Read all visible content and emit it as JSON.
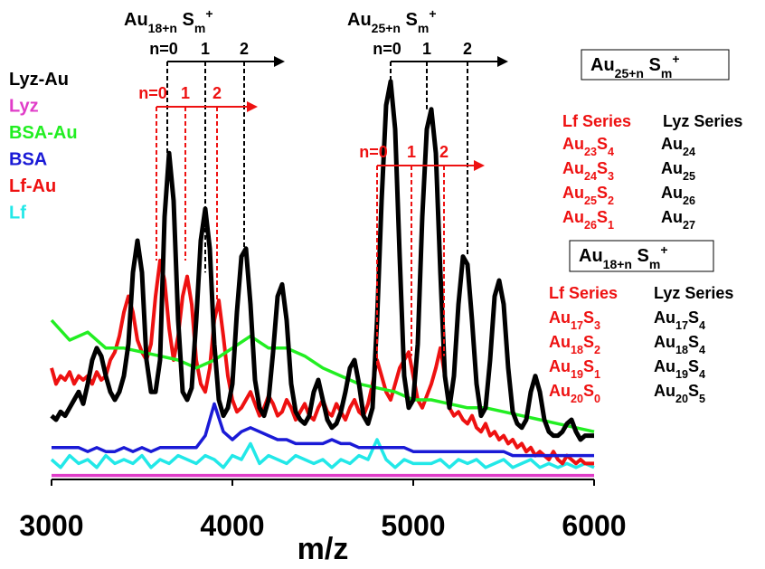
{
  "chart_data": {
    "type": "line",
    "xlabel": "m/z",
    "xlim": [
      3000,
      6000
    ],
    "xticks": [
      3000,
      4000,
      5000,
      6000
    ],
    "ylim": [
      0,
      100
    ],
    "series": [
      {
        "name": "Lyz-Au",
        "color": "#000000",
        "x": [
          3000,
          3025,
          3050,
          3075,
          3100,
          3125,
          3150,
          3175,
          3200,
          3225,
          3250,
          3275,
          3300,
          3325,
          3350,
          3375,
          3400,
          3425,
          3450,
          3475,
          3500,
          3525,
          3550,
          3575,
          3600,
          3625,
          3650,
          3675,
          3700,
          3725,
          3750,
          3775,
          3800,
          3825,
          3850,
          3875,
          3900,
          3925,
          3950,
          3975,
          4000,
          4025,
          4050,
          4075,
          4100,
          4125,
          4150,
          4175,
          4200,
          4225,
          4250,
          4275,
          4300,
          4325,
          4350,
          4375,
          4400,
          4425,
          4450,
          4475,
          4500,
          4525,
          4550,
          4575,
          4600,
          4625,
          4650,
          4675,
          4700,
          4725,
          4750,
          4775,
          4800,
          4825,
          4850,
          4875,
          4900,
          4925,
          4950,
          4975,
          5000,
          5025,
          5050,
          5075,
          5100,
          5125,
          5150,
          5175,
          5200,
          5225,
          5250,
          5275,
          5300,
          5325,
          5350,
          5375,
          5400,
          5425,
          5450,
          5475,
          5500,
          5525,
          5550,
          5575,
          5600,
          5625,
          5650,
          5675,
          5700,
          5725,
          5750,
          5775,
          5800,
          5825,
          5850,
          5875,
          5900,
          5925,
          5950,
          5975,
          6000
        ],
        "values": [
          16,
          15,
          17,
          16,
          18,
          20,
          22,
          19,
          24,
          30,
          33,
          31,
          26,
          22,
          20,
          22,
          26,
          34,
          52,
          60,
          52,
          30,
          22,
          22,
          30,
          66,
          82,
          70,
          40,
          22,
          20,
          23,
          40,
          60,
          68,
          58,
          34,
          20,
          16,
          18,
          24,
          42,
          56,
          58,
          44,
          25,
          18,
          16,
          20,
          32,
          46,
          49,
          40,
          24,
          17,
          15,
          14,
          16,
          22,
          25,
          20,
          15,
          13,
          14,
          17,
          22,
          28,
          30,
          24,
          16,
          14,
          18,
          40,
          70,
          94,
          100,
          88,
          56,
          26,
          18,
          20,
          34,
          66,
          88,
          93,
          82,
          52,
          26,
          18,
          26,
          44,
          56,
          54,
          40,
          24,
          16,
          18,
          30,
          46,
          50,
          44,
          28,
          17,
          14,
          13,
          15,
          22,
          26,
          22,
          15,
          12,
          11,
          11,
          12,
          14,
          15,
          12,
          10,
          11,
          11,
          11
        ]
      },
      {
        "name": "Lyz",
        "color": "#e03cc8",
        "x": [
          3000,
          3500,
          4000,
          4500,
          5000,
          5500,
          6000
        ],
        "values": [
          1,
          1,
          1,
          1,
          1,
          1,
          1
        ]
      },
      {
        "name": "BSA-Au",
        "color": "#22ee22",
        "x": [
          3000,
          3100,
          3200,
          3300,
          3400,
          3500,
          3600,
          3700,
          3800,
          3900,
          4000,
          4100,
          4200,
          4300,
          4400,
          4500,
          4600,
          4700,
          4800,
          4900,
          5000,
          5100,
          5200,
          5300,
          5400,
          5500,
          5600,
          5700,
          5800,
          5900,
          6000
        ],
        "values": [
          40,
          35,
          37,
          33,
          33,
          32,
          31,
          30,
          28,
          30,
          33,
          36,
          33,
          33,
          31,
          28,
          26,
          24,
          23,
          22,
          20,
          20,
          19,
          18,
          18,
          17,
          16,
          15,
          14,
          13,
          12
        ]
      },
      {
        "name": "BSA",
        "color": "#1a1ad6",
        "x": [
          3000,
          3050,
          3100,
          3150,
          3200,
          3250,
          3300,
          3350,
          3400,
          3450,
          3500,
          3550,
          3600,
          3650,
          3700,
          3750,
          3800,
          3850,
          3900,
          3950,
          4000,
          4050,
          4100,
          4150,
          4200,
          4250,
          4300,
          4350,
          4400,
          4450,
          4500,
          4550,
          4600,
          4650,
          4700,
          4750,
          4800,
          4850,
          4900,
          4950,
          5000,
          5050,
          5100,
          5150,
          5200,
          5250,
          5300,
          5350,
          5400,
          5450,
          5500,
          5550,
          5600,
          5650,
          5700,
          5750,
          5800,
          5850,
          5900,
          5950,
          6000
        ],
        "values": [
          8,
          8,
          8,
          8,
          7,
          8,
          7,
          7,
          8,
          7,
          8,
          7,
          8,
          8,
          8,
          8,
          8,
          11,
          19,
          12,
          10,
          12,
          13,
          12,
          11,
          10,
          10,
          9,
          9,
          9,
          9,
          10,
          9,
          9,
          8,
          8,
          8,
          8,
          8,
          8,
          7,
          7,
          7,
          7,
          7,
          7,
          7,
          7,
          7,
          7,
          7,
          6,
          6,
          6,
          6,
          6,
          6,
          6,
          6,
          6,
          6
        ]
      },
      {
        "name": "Lf-Au",
        "color": "#ee1111",
        "x": [
          3000,
          3025,
          3050,
          3075,
          3100,
          3125,
          3150,
          3175,
          3200,
          3225,
          3250,
          3275,
          3300,
          3325,
          3350,
          3375,
          3400,
          3425,
          3450,
          3475,
          3500,
          3525,
          3550,
          3575,
          3600,
          3625,
          3650,
          3675,
          3700,
          3725,
          3750,
          3775,
          3800,
          3825,
          3850,
          3875,
          3900,
          3925,
          3950,
          3975,
          4000,
          4025,
          4050,
          4075,
          4100,
          4125,
          4150,
          4175,
          4200,
          4225,
          4250,
          4275,
          4300,
          4325,
          4350,
          4375,
          4400,
          4425,
          4450,
          4475,
          4500,
          4525,
          4550,
          4575,
          4600,
          4625,
          4650,
          4675,
          4700,
          4725,
          4750,
          4775,
          4800,
          4825,
          4850,
          4875,
          4900,
          4925,
          4950,
          4975,
          5000,
          5025,
          5050,
          5075,
          5100,
          5125,
          5150,
          5175,
          5200,
          5225,
          5250,
          5275,
          5300,
          5325,
          5350,
          5375,
          5400,
          5425,
          5450,
          5475,
          5500,
          5525,
          5550,
          5575,
          5600,
          5625,
          5650,
          5675,
          5700,
          5725,
          5750,
          5775,
          5800,
          5825,
          5850,
          5875,
          5900,
          5925,
          5950,
          5975,
          6000
        ],
        "values": [
          28,
          24,
          26,
          25,
          27,
          24,
          26,
          25,
          26,
          24,
          27,
          25,
          26,
          30,
          32,
          36,
          42,
          46,
          42,
          35,
          32,
          30,
          34,
          46,
          55,
          50,
          38,
          30,
          36,
          46,
          51,
          44,
          30,
          24,
          22,
          28,
          40,
          45,
          36,
          26,
          20,
          17,
          18,
          20,
          22,
          19,
          16,
          18,
          21,
          19,
          16,
          17,
          20,
          18,
          15,
          17,
          19,
          16,
          15,
          18,
          20,
          17,
          16,
          19,
          17,
          15,
          18,
          20,
          17,
          16,
          19,
          24,
          30,
          26,
          22,
          20,
          24,
          28,
          30,
          32,
          26,
          20,
          18,
          21,
          24,
          28,
          33,
          26,
          18,
          16,
          17,
          15,
          14,
          16,
          13,
          12,
          14,
          11,
          12,
          10,
          11,
          9,
          10,
          8,
          9,
          7,
          8,
          6,
          7,
          6,
          5,
          7,
          5,
          4,
          6,
          5,
          4,
          5,
          4,
          4,
          4
        ]
      },
      {
        "name": "Lf",
        "color": "#22e8e8",
        "x": [
          3000,
          3050,
          3100,
          3150,
          3200,
          3250,
          3300,
          3350,
          3400,
          3450,
          3500,
          3550,
          3600,
          3650,
          3700,
          3750,
          3800,
          3850,
          3900,
          3950,
          4000,
          4050,
          4100,
          4150,
          4200,
          4250,
          4300,
          4350,
          4400,
          4450,
          4500,
          4550,
          4600,
          4650,
          4700,
          4750,
          4800,
          4850,
          4900,
          4950,
          5000,
          5050,
          5100,
          5150,
          5200,
          5250,
          5300,
          5350,
          5400,
          5450,
          5500,
          5550,
          5600,
          5650,
          5700,
          5750,
          5800,
          5850,
          5900,
          5950,
          6000
        ],
        "values": [
          5,
          3,
          6,
          4,
          5,
          3,
          6,
          4,
          5,
          4,
          6,
          3,
          5,
          4,
          6,
          5,
          4,
          6,
          5,
          3,
          6,
          5,
          9,
          4,
          6,
          5,
          4,
          6,
          5,
          4,
          5,
          3,
          5,
          4,
          6,
          5,
          10,
          5,
          3,
          5,
          4,
          4,
          4,
          5,
          3,
          5,
          4,
          5,
          3,
          4,
          5,
          3,
          4,
          5,
          3,
          4,
          3,
          4,
          3,
          4,
          3
        ]
      }
    ],
    "markers": [
      {
        "color": "#000000",
        "title": [
          {
            "text": "Au"
          },
          {
            "sub": "18+n"
          },
          {
            "text": " S"
          },
          {
            "sub": "m"
          },
          {
            "sup": "+"
          }
        ],
        "labels": [
          "n=0",
          "1",
          "2"
        ],
        "x": [
          3640,
          3850,
          4065
        ],
        "y": [
          82,
          52,
          57
        ]
      },
      {
        "color": "#ee1111",
        "labels": [
          "n=0",
          "1",
          "2"
        ],
        "x": [
          3580,
          3740,
          3915
        ],
        "y": [
          55,
          55,
          45
        ]
      },
      {
        "color": "#000000",
        "title": [
          {
            "text": "Au"
          },
          {
            "sub": "25+n"
          },
          {
            "text": " S"
          },
          {
            "sub": "m"
          },
          {
            "sup": "+"
          }
        ],
        "labels": [
          "n=0",
          "1",
          "2"
        ],
        "x": [
          4875,
          5075,
          5300
        ],
        "y": [
          100,
          93,
          56
        ]
      },
      {
        "color": "#ee1111",
        "labels": [
          "n=0",
          "1",
          "2"
        ],
        "x": [
          4800,
          4990,
          5170
        ],
        "y": [
          28,
          31,
          31
        ]
      }
    ],
    "boxes": [
      {
        "formula": [
          {
            "text": "Au"
          },
          {
            "sub": "25+n"
          },
          {
            "text": " S"
          },
          {
            "sub": "m"
          },
          {
            "sup": "+"
          }
        ],
        "columns": [
          {
            "header": "Lf Series",
            "color": "#ee1111",
            "rows": [
              [
                {
                  "text": "Au"
                },
                {
                  "sub": "23"
                },
                {
                  "text": "S"
                },
                {
                  "sub": "4"
                }
              ],
              [
                {
                  "text": "Au"
                },
                {
                  "sub": "24"
                },
                {
                  "text": "S"
                },
                {
                  "sub": "3"
                }
              ],
              [
                {
                  "text": "Au"
                },
                {
                  "sub": "25"
                },
                {
                  "text": "S"
                },
                {
                  "sub": "2"
                }
              ],
              [
                {
                  "text": "Au"
                },
                {
                  "sub": "26"
                },
                {
                  "text": "S"
                },
                {
                  "sub": "1"
                }
              ]
            ]
          },
          {
            "header": "Lyz Series",
            "color": "#000000",
            "rows": [
              [
                {
                  "text": "Au"
                },
                {
                  "sub": "24"
                }
              ],
              [
                {
                  "text": "Au"
                },
                {
                  "sub": "25"
                }
              ],
              [
                {
                  "text": "Au"
                },
                {
                  "sub": "26"
                }
              ],
              [
                {
                  "text": "Au"
                },
                {
                  "sub": "27"
                }
              ]
            ]
          }
        ]
      },
      {
        "formula": [
          {
            "text": "Au"
          },
          {
            "sub": "18+n"
          },
          {
            "text": " S"
          },
          {
            "sub": "m"
          },
          {
            "sup": "+"
          }
        ],
        "columns": [
          {
            "header": "Lf Series",
            "color": "#ee1111",
            "rows": [
              [
                {
                  "text": "Au"
                },
                {
                  "sub": "17"
                },
                {
                  "text": "S"
                },
                {
                  "sub": "3"
                }
              ],
              [
                {
                  "text": "Au"
                },
                {
                  "sub": "18"
                },
                {
                  "text": "S"
                },
                {
                  "sub": "2"
                }
              ],
              [
                {
                  "text": "Au"
                },
                {
                  "sub": "19"
                },
                {
                  "text": "S"
                },
                {
                  "sub": "1"
                }
              ],
              [
                {
                  "text": "Au"
                },
                {
                  "sub": "20"
                },
                {
                  "text": "S"
                },
                {
                  "sub": "0"
                }
              ]
            ]
          },
          {
            "header": "Lyz Series",
            "color": "#000000",
            "rows": [
              [
                {
                  "text": "Au"
                },
                {
                  "sub": "17"
                },
                {
                  "text": "S"
                },
                {
                  "sub": "4"
                }
              ],
              [
                {
                  "text": "Au"
                },
                {
                  "sub": "18"
                },
                {
                  "text": "S"
                },
                {
                  "sub": "4"
                }
              ],
              [
                {
                  "text": "Au"
                },
                {
                  "sub": "19"
                },
                {
                  "text": "S"
                },
                {
                  "sub": "4"
                }
              ],
              [
                {
                  "text": "Au"
                },
                {
                  "sub": "20"
                },
                {
                  "text": "S"
                },
                {
                  "sub": "5"
                }
              ]
            ]
          }
        ]
      }
    ]
  }
}
